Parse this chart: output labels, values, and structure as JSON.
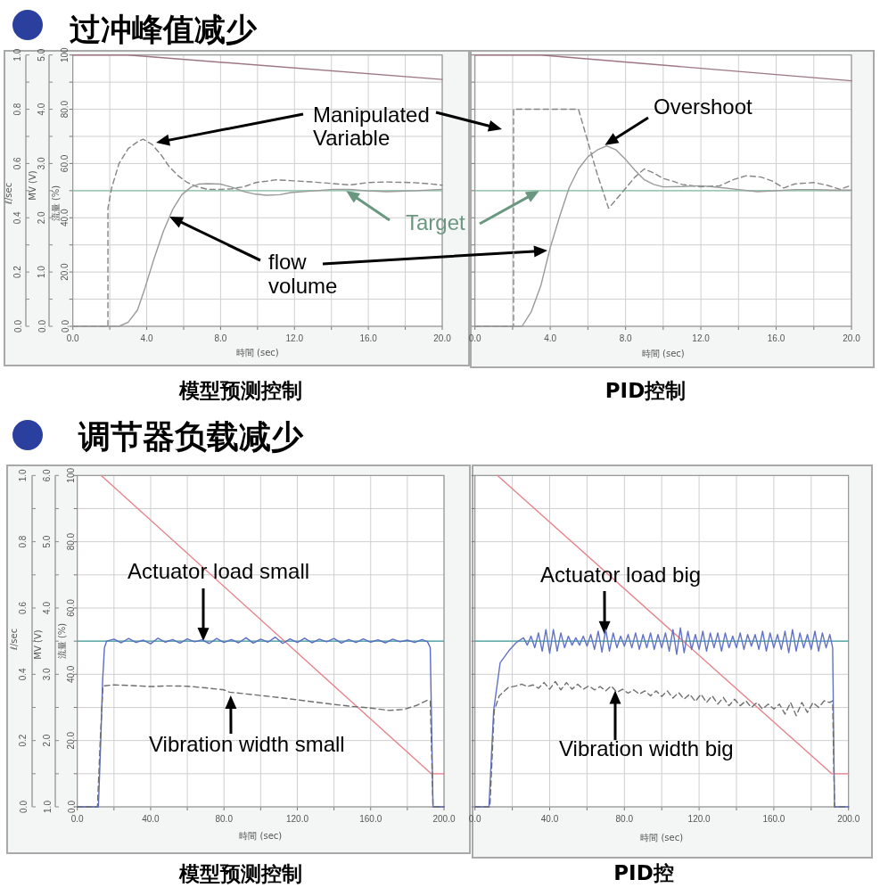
{
  "chart_data": [
    {
      "type": "line",
      "title": "过冲峰值减少",
      "xlabel": "時間 (sec)",
      "ylabel": "流量 (%)",
      "y2label": "ℓ/sec",
      "y3label": "MV (V)",
      "xlim": [
        0,
        20
      ],
      "xticks": [
        {
          "value": 0,
          "label": "0.0"
        },
        {
          "value": 2,
          "label": null
        },
        {
          "value": 4,
          "label": "4.0"
        },
        {
          "value": 6,
          "label": null
        },
        {
          "value": 8,
          "label": "8.0"
        },
        {
          "value": 10,
          "label": null
        },
        {
          "value": 12,
          "label": "12.0"
        },
        {
          "value": 14,
          "label": null
        },
        {
          "value": 16,
          "label": "16.0"
        },
        {
          "value": 18,
          "label": null
        },
        {
          "value": 20,
          "label": "20.0"
        }
      ],
      "ylim": [
        0,
        100
      ],
      "yticks": [
        {
          "value": 0,
          "label": "0.0"
        },
        {
          "value": 10,
          "label": null
        },
        {
          "value": 20,
          "label": "20.0"
        },
        {
          "value": 30,
          "label": null
        },
        {
          "value": 40,
          "label": "40.0"
        },
        {
          "value": 50,
          "label": null
        },
        {
          "value": 60,
          "label": "60.0"
        },
        {
          "value": 70,
          "label": null
        },
        {
          "value": 80,
          "label": "80.0"
        },
        {
          "value": 90,
          "label": null
        },
        100
      ],
      "y2lim": [
        0,
        1
      ],
      "y2ticks": [
        {
          "value": 0,
          "label": "0.0"
        },
        {
          "value": 0.1,
          "label": null
        },
        {
          "value": 0.2,
          "label": "0.2"
        },
        {
          "value": 0.3,
          "label": null
        },
        {
          "value": 0.4,
          "label": "0.4"
        },
        {
          "value": 0.5,
          "label": null
        },
        {
          "value": 0.6,
          "label": "0.6"
        },
        {
          "value": 0.7,
          "label": null
        },
        {
          "value": 0.8,
          "label": "0.8"
        },
        {
          "value": 0.9,
          "label": null
        },
        {
          "value": 1,
          "label": "1.0"
        }
      ],
      "y3lim": [
        0,
        5
      ],
      "y3ticks": [
        {
          "value": 0,
          "label": "0.0"
        },
        {
          "value": 0.5,
          "label": null
        },
        {
          "value": 1,
          "label": "1.0"
        },
        {
          "value": 1.5,
          "label": null
        },
        {
          "value": 2,
          "label": "2.0"
        },
        {
          "value": 2.5,
          "label": null
        },
        {
          "value": 3,
          "label": "3.0"
        },
        {
          "value": 3.5,
          "label": null
        },
        {
          "value": 4,
          "label": "4.0"
        },
        {
          "value": 4.5,
          "label": null
        },
        {
          "value": 5,
          "label": "5.0"
        }
      ],
      "grid": true,
      "series": [
        {
          "color": "#9e7682",
          "x": [
            0,
            3,
            20
          ],
          "values": [
            100,
            100,
            91
          ]
        },
        {
          "color": "#858585",
          "line_style": "dashed",
          "x": [
            0,
            1.9,
            1.9,
            2.1,
            2.5,
            3.0,
            3.5,
            3.8,
            4.3,
            4.8,
            5.2,
            5.7,
            6.2,
            6.7,
            7.3,
            8.0,
            8.6,
            9.3,
            9.9,
            10.5,
            11.0,
            11.8,
            13.0,
            14.1,
            15.0,
            16.0,
            17.0,
            18.3,
            19.2,
            20
          ],
          "values": [
            0,
            0,
            43.5,
            51,
            60,
            65.5,
            68,
            69,
            67,
            63,
            59,
            55.5,
            53,
            51.5,
            50.5,
            50.5,
            50.7,
            51.5,
            53,
            53.5,
            54,
            53.7,
            53.2,
            52.6,
            52.1,
            53,
            53.2,
            53,
            52.6,
            52
          ]
        },
        {
          "color": "#9a9a9a",
          "x": [
            0,
            2.5,
            3.0,
            3.5,
            3.9,
            4.4,
            4.9,
            5.4,
            5.9,
            6.4,
            6.8,
            7.3,
            8.0,
            8.6,
            9.3,
            9.9,
            10.5,
            11.2,
            11.8,
            13.0,
            14.1,
            15.0,
            16.0,
            17.0,
            18.3,
            20
          ],
          "values": [
            0,
            0,
            1.5,
            6,
            14,
            25,
            35,
            43,
            48.5,
            51.3,
            52.4,
            52.6,
            52.4,
            51.3,
            49.6,
            48.7,
            48.3,
            48.5,
            49.3,
            49.9,
            50.5,
            50.5,
            49.9,
            49.6,
            49.9,
            50.5
          ]
        }
      ],
      "ref_lines": [
        {
          "axis": "y",
          "value": 50,
          "label": "Target",
          "color": "#88c2a4"
        }
      ],
      "annotations": [
        "Manipulated Variable",
        "flow volume",
        "模型预测控制"
      ]
    },
    {
      "type": "line",
      "xlabel": "時間 (sec)",
      "tick_labels": "x",
      "xlim": [
        0,
        20
      ],
      "xticks": [
        {
          "value": 0,
          "label": "0.0"
        },
        {
          "value": 2,
          "label": null
        },
        {
          "value": 4,
          "label": "4.0"
        },
        {
          "value": 6,
          "label": null
        },
        {
          "value": 8,
          "label": "8.0"
        },
        {
          "value": 10,
          "label": null
        },
        {
          "value": 12,
          "label": "12.0"
        },
        {
          "value": 14,
          "label": null
        },
        {
          "value": 16,
          "label": "16.0"
        },
        {
          "value": 18,
          "label": null
        },
        {
          "value": 20,
          "label": "20.0"
        }
      ],
      "ylim": [
        0,
        100
      ],
      "yticks": [
        {
          "value": 0,
          "label": null
        },
        {
          "value": 10,
          "label": null
        },
        {
          "value": 20,
          "label": null
        },
        {
          "value": 30,
          "label": null
        },
        {
          "value": 40,
          "label": null
        },
        {
          "value": 50,
          "label": null
        },
        {
          "value": 60,
          "label": null
        },
        {
          "value": 70,
          "label": null
        },
        {
          "value": 80,
          "label": null
        },
        {
          "value": 90,
          "label": null
        },
        {
          "value": 100,
          "label": null
        }
      ],
      "grid": true,
      "series": [
        {
          "color": "#9e7682",
          "x": [
            0,
            3.5,
            20
          ],
          "values": [
            100,
            100,
            90.5
          ]
        },
        {
          "color": "#858585",
          "line_style": "dashed",
          "x": [
            0,
            2.05,
            2.05,
            5.5,
            6.0,
            6.5,
            7.1,
            7.9,
            8.5,
            9.0,
            9.5,
            10.0,
            10.5,
            11.0,
            12.0,
            13.0,
            13.7,
            14.4,
            15.2,
            15.8,
            16.4,
            17.0,
            18.0,
            18.7,
            19.4,
            20
          ],
          "values": [
            0,
            0,
            80,
            80,
            68,
            56,
            43.5,
            50,
            55,
            58,
            56.5,
            54.5,
            53.5,
            52.3,
            51.4,
            51.8,
            54,
            55.5,
            55,
            53.5,
            51,
            52.5,
            53,
            52,
            50.5,
            52
          ]
        },
        {
          "color": "#9a9a9a",
          "x": [
            0,
            2.5,
            3,
            3.5,
            4,
            4.5,
            5,
            5.5,
            6,
            6.5,
            7,
            7.5,
            8,
            8.5,
            9,
            9.5,
            10,
            11,
            12,
            13,
            14,
            15,
            16,
            17,
            18,
            19,
            20
          ],
          "values": [
            0,
            0,
            5.5,
            15,
            29,
            40.5,
            51,
            58,
            62.5,
            65,
            66.5,
            65,
            61.5,
            57.5,
            54,
            52.3,
            51.4,
            51.5,
            51.8,
            51.2,
            50.4,
            49.6,
            50,
            50.4,
            50.4,
            50.2,
            50.2
          ]
        }
      ],
      "ref_lines": [
        {
          "axis": "y",
          "value": 50,
          "color": "#88c2a4"
        }
      ],
      "annotations": [
        {
          "text": "Overshoot",
          "x": 6.9,
          "y": 66.8
        },
        "PID控制"
      ]
    },
    {
      "type": "line",
      "title": "调节器负载减少",
      "xlabel": "時間 (sec)",
      "ylabel": "流量 (%)",
      "y2label": "ℓ/sec",
      "y3label": "MV (V)",
      "xlim": [
        0,
        200
      ],
      "xticks": [
        {
          "value": 0,
          "label": "0.0"
        },
        {
          "value": 20,
          "label": null
        },
        {
          "value": 40,
          "label": "40.0"
        },
        {
          "value": 60,
          "label": null
        },
        {
          "value": 80,
          "label": "80.0"
        },
        {
          "value": 100,
          "label": null
        },
        {
          "value": 120,
          "label": "120.0"
        },
        {
          "value": 140,
          "label": null
        },
        {
          "value": 160,
          "label": "160.0"
        },
        {
          "value": 180,
          "label": null
        },
        {
          "value": 200,
          "label": "200.0"
        }
      ],
      "ylim": [
        0,
        100
      ],
      "yticks": [
        {
          "value": 0,
          "label": "0.0"
        },
        {
          "value": 10,
          "label": null
        },
        {
          "value": 20,
          "label": "20.0"
        },
        {
          "value": 30,
          "label": null
        },
        {
          "value": 40,
          "label": "40.0"
        },
        {
          "value": 50,
          "label": null
        },
        {
          "value": 60,
          "label": "60.0"
        },
        {
          "value": 70,
          "label": null
        },
        {
          "value": 80,
          "label": "80.0"
        },
        {
          "value": 90,
          "label": null
        },
        100
      ],
      "y2lim": [
        0,
        1
      ],
      "y2ticks": [
        {
          "value": 0,
          "label": "0.0"
        },
        {
          "value": 0.1,
          "label": null
        },
        {
          "value": 0.2,
          "label": "0.2"
        },
        {
          "value": 0.3,
          "label": null
        },
        {
          "value": 0.4,
          "label": "0.4"
        },
        {
          "value": 0.5,
          "label": null
        },
        {
          "value": 0.6,
          "label": "0.6"
        },
        {
          "value": 0.7,
          "label": null
        },
        {
          "value": 0.8,
          "label": "0.8"
        },
        {
          "value": 0.9,
          "label": null
        },
        {
          "value": 1,
          "label": "1.0"
        }
      ],
      "y3lim": [
        1,
        6
      ],
      "y3ticks": [
        {
          "value": 1,
          "label": "1.0"
        },
        {
          "value": 1.5,
          "label": null
        },
        {
          "value": 2,
          "label": "2.0"
        },
        {
          "value": 2.5,
          "label": null
        },
        {
          "value": 3,
          "label": "3.0"
        },
        {
          "value": 3.5,
          "label": null
        },
        {
          "value": 4,
          "label": "4.0"
        },
        {
          "value": 4.5,
          "label": null
        },
        {
          "value": 5,
          "label": "5.0"
        },
        {
          "value": 5.5,
          "label": null
        },
        {
          "value": 6,
          "label": "6.0"
        }
      ],
      "grid": true,
      "series": [
        {
          "color": "#e8848c",
          "x": [
            13,
            193,
            200
          ],
          "values": [
            100,
            10,
            10
          ]
        },
        {
          "color": "#5b6cc4",
          "x": [
            0,
            11.5,
            12.8,
            13.8,
            14.8,
            16,
            20,
            24,
            28,
            32,
            36,
            40,
            44,
            48,
            52,
            56,
            60,
            64,
            68,
            72,
            76,
            80,
            84,
            88,
            92,
            96,
            100,
            104,
            108,
            112,
            116,
            120,
            124,
            128,
            132,
            136,
            140,
            144,
            148,
            152,
            156,
            160,
            164,
            168,
            172,
            176,
            180,
            184,
            188,
            191,
            192.5,
            194,
            200
          ],
          "values": [
            0,
            0,
            20,
            38,
            48,
            50,
            50.6,
            49.5,
            50.8,
            49.6,
            50.3,
            49.2,
            50.9,
            49.7,
            50.5,
            49.4,
            50.7,
            49.8,
            50.4,
            49.3,
            50.8,
            49.6,
            50.5,
            49.5,
            51,
            49.4,
            50.6,
            49.7,
            51.2,
            49.3,
            50.7,
            49.6,
            50.9,
            49.5,
            50.6,
            49.8,
            50.8,
            49.4,
            50.5,
            49.6,
            50.7,
            49.7,
            50.4,
            49.5,
            50.6,
            49.8,
            50.3,
            49.6,
            50.5,
            49.8,
            48,
            0,
            0
          ]
        },
        {
          "color": "#6e6e6e",
          "line_style": "dashed",
          "x": [
            0,
            11,
            12.5,
            14,
            20,
            30,
            40,
            50,
            60,
            70,
            80,
            83,
            90,
            100,
            110,
            120,
            130,
            140,
            150,
            160,
            170,
            178,
            185,
            191,
            192.5,
            194,
            200
          ],
          "values": [
            0,
            0,
            20,
            36.5,
            36.8,
            36.6,
            36.3,
            36.5,
            36.4,
            35.9,
            35.3,
            34.6,
            34.2,
            33.6,
            33,
            32.3,
            31.6,
            30.9,
            30.3,
            29.8,
            29.1,
            29.4,
            30.6,
            32.2,
            32,
            0,
            0
          ]
        }
      ],
      "ref_lines": [
        {
          "axis": "y",
          "value": 50,
          "color": "#3f9f9f"
        }
      ],
      "annotations": [
        {
          "text": "Actuator load small",
          "x": 68.7,
          "y": 50
        },
        {
          "text": "Vibration width small",
          "x": 83.7,
          "y": 33.6
        },
        "模型预测控制"
      ]
    },
    {
      "type": "line",
      "xlabel": "時間 (sec)",
      "tick_labels": "x",
      "xlim": [
        0,
        200
      ],
      "xticks": [
        {
          "value": 0,
          "label": "0.0"
        },
        {
          "value": 20,
          "label": null
        },
        {
          "value": 40,
          "label": "40.0"
        },
        {
          "value": 60,
          "label": null
        },
        {
          "value": 80,
          "label": "80.0"
        },
        {
          "value": 100,
          "label": null
        },
        {
          "value": 120,
          "label": "120.0"
        },
        {
          "value": 140,
          "label": null
        },
        {
          "value": 160,
          "label": "160.0"
        },
        {
          "value": 180,
          "label": null
        },
        {
          "value": 200,
          "label": "200.0"
        }
      ],
      "ylim": [
        0,
        100
      ],
      "yticks": [
        {
          "value": 0,
          "label": null
        },
        {
          "value": 10,
          "label": null
        },
        {
          "value": 20,
          "label": null
        },
        {
          "value": 30,
          "label": null
        },
        {
          "value": 40,
          "label": null
        },
        {
          "value": 50,
          "label": null
        },
        {
          "value": 60,
          "label": null
        },
        {
          "value": 70,
          "label": null
        },
        {
          "value": 80,
          "label": null
        },
        {
          "value": 90,
          "label": null
        },
        {
          "value": 100,
          "label": null
        }
      ],
      "grid": true,
      "series": [
        {
          "color": "#e8848c",
          "x": [
            12,
            191,
            200
          ],
          "values": [
            100,
            10,
            10
          ]
        },
        {
          "color": "#6272c6",
          "x": [
            0,
            7.5,
            10,
            13.5,
            18,
            22,
            26,
            28,
            30,
            32,
            34,
            36,
            38,
            40,
            42,
            44,
            46,
            48,
            50,
            52,
            54,
            56,
            58,
            60,
            62,
            64,
            66,
            68,
            70,
            72,
            74,
            76,
            78,
            80,
            82,
            84,
            86,
            88,
            90,
            92,
            94,
            96,
            98,
            100,
            102,
            104,
            106,
            108,
            110,
            112,
            114,
            116,
            118,
            120,
            122,
            124,
            126,
            128,
            130,
            132,
            134,
            136,
            138,
            140,
            142,
            144,
            146,
            148,
            150,
            152,
            154,
            156,
            158,
            160,
            162,
            164,
            166,
            168,
            170,
            172,
            174,
            176,
            178,
            180,
            182,
            184,
            186,
            188,
            190,
            191.5,
            192.5,
            200
          ],
          "values": [
            0,
            0,
            29,
            43.5,
            47,
            49.5,
            51,
            48.8,
            51.5,
            48,
            52.5,
            47,
            53.5,
            46.3,
            53.5,
            47,
            52.5,
            48,
            51.5,
            48.8,
            51,
            48.8,
            51.5,
            48.5,
            52,
            47.5,
            53,
            46.7,
            53.5,
            47,
            52.5,
            48,
            51.5,
            48.5,
            52,
            48,
            52.5,
            47.5,
            52,
            48,
            52.5,
            47.5,
            52,
            48,
            52.5,
            47,
            53.5,
            46,
            54,
            46.5,
            53,
            47.5,
            52,
            47.5,
            53,
            47,
            52.5,
            48,
            52.5,
            47,
            52.5,
            48,
            51.5,
            48,
            52.5,
            47.5,
            52,
            48.5,
            52,
            47.5,
            53,
            47,
            52.5,
            48,
            52,
            47.5,
            53,
            46.5,
            53.5,
            47,
            52.5,
            48,
            52,
            47.5,
            53,
            47,
            52.5,
            48,
            52,
            48,
            0,
            0
          ]
        },
        {
          "color": "#6e6e6e",
          "line_style": "dashed",
          "x": [
            0,
            8,
            10.3,
            13,
            17.8,
            22,
            25,
            28,
            31,
            34,
            37,
            40,
            43,
            46,
            49,
            52,
            55,
            58,
            61,
            64,
            67,
            70,
            73,
            76,
            79,
            82,
            85,
            88,
            91,
            94,
            97,
            100,
            103,
            106,
            109,
            112,
            115,
            118,
            121,
            124,
            127,
            130,
            133,
            136,
            139,
            142,
            145,
            148,
            151,
            154,
            157,
            160,
            163,
            166,
            169,
            172,
            175,
            178,
            181,
            184,
            187,
            190,
            191.5,
            192.5,
            200
          ],
          "values": [
            0,
            0,
            29,
            33.5,
            36,
            36.5,
            37,
            36.3,
            36.8,
            35.8,
            37.5,
            35.5,
            37.8,
            35.3,
            37.5,
            35.5,
            37,
            35.5,
            36.5,
            35.3,
            36.3,
            35,
            36.5,
            34.5,
            35.5,
            34.3,
            35.3,
            34,
            35,
            33.5,
            35,
            33.3,
            35,
            32.8,
            34.5,
            32.5,
            34,
            31.8,
            34,
            31.5,
            33.5,
            31,
            33,
            30.5,
            32.5,
            30.5,
            32,
            30,
            31.5,
            29.5,
            31,
            29.5,
            31,
            28,
            31.5,
            27.5,
            31.5,
            28.5,
            31.5,
            30,
            32,
            31.5,
            32,
            0,
            0
          ]
        }
      ],
      "ref_lines": [
        {
          "axis": "y",
          "value": 50,
          "color": "#3f9f9f"
        }
      ],
      "annotations": [
        {
          "text": "Actuator load big",
          "x": 69.4,
          "y": 52
        },
        {
          "text": "Vibration width big",
          "x": 75.1,
          "y": 35.1
        },
        "PID控"
      ]
    }
  ]
}
